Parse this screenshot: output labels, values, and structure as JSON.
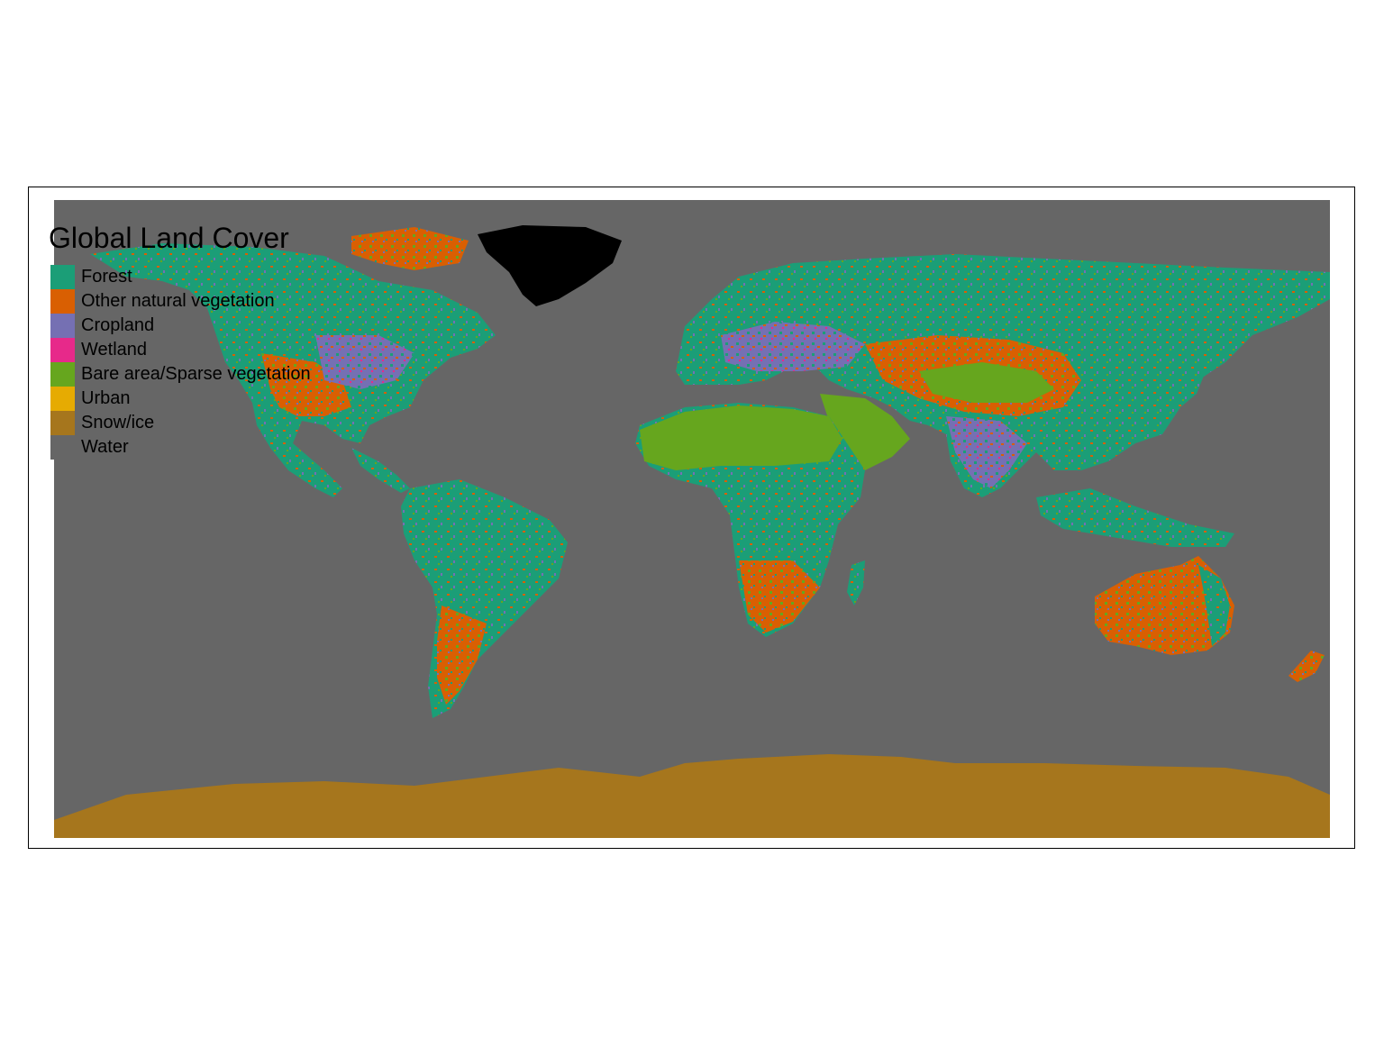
{
  "map": {
    "title": "Global Land Cover",
    "background_color": "#666666",
    "legend": [
      {
        "name": "forest",
        "label": "Forest",
        "color": "#1b9e77"
      },
      {
        "name": "other-natural-vegetation",
        "label": "Other natural vegetation",
        "color": "#d95f02"
      },
      {
        "name": "cropland",
        "label": "Cropland",
        "color": "#7570b3"
      },
      {
        "name": "wetland",
        "label": "Wetland",
        "color": "#e7298a"
      },
      {
        "name": "bare-area",
        "label": "Bare area/Sparse vegetation",
        "color": "#66a61e"
      },
      {
        "name": "urban",
        "label": "Urban",
        "color": "#e6ab02"
      },
      {
        "name": "snow-ice",
        "label": "Snow/ice",
        "color": "#a6761d"
      },
      {
        "name": "water",
        "label": "Water",
        "color": "#666666"
      }
    ]
  }
}
